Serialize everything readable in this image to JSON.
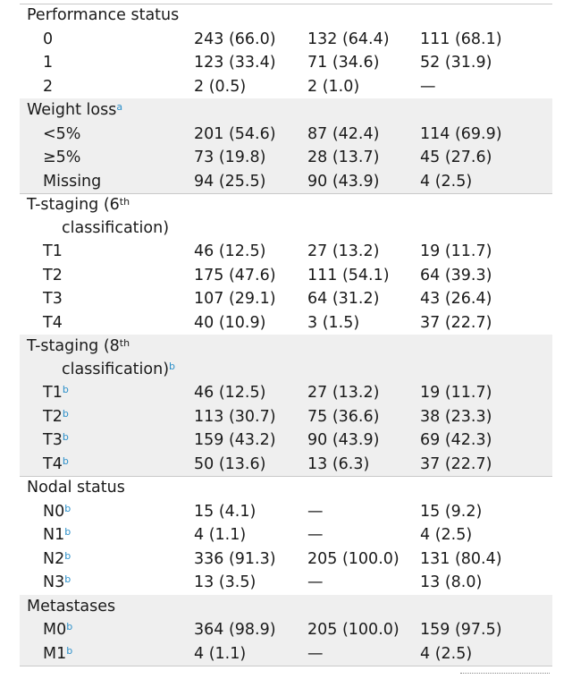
{
  "rows": [
    {
      "label": "Performance status",
      "type": "header",
      "shade": false
    },
    {
      "label": "0",
      "v1": "243 (66.0)",
      "v2": "132 (64.4)",
      "v3": "111 (68.1)"
    },
    {
      "label": "1",
      "v1": "123 (33.4)",
      "v2": "71 (34.6)",
      "v3": "52 (31.9)"
    },
    {
      "label": "2",
      "v1": "2 (0.5)",
      "v2": "2 (1.0)",
      "v3": "—"
    },
    {
      "label": "Weight loss",
      "sup": "a",
      "type": "header",
      "shade": true
    },
    {
      "label": "<5%",
      "v1": "201 (54.6)",
      "v2": "87 (42.4)",
      "v3": "114 (69.9)"
    },
    {
      "label": "≥5%",
      "v1": "73 (19.8)",
      "v2": "28 (13.7)",
      "v3": "45 (27.6)"
    },
    {
      "label": "Missing",
      "v1": "94 (25.5)",
      "v2": "90 (43.9)",
      "v3": "4 (2.5)"
    },
    {
      "label": "T-staging (6",
      "sup": "th",
      "cont": "classification)",
      "type": "header2",
      "shade": false
    },
    {
      "label": "T1",
      "v1": "46 (12.5)",
      "v2": "27 (13.2)",
      "v3": "19 (11.7)"
    },
    {
      "label": "T2",
      "v1": "175 (47.6)",
      "v2": "111 (54.1)",
      "v3": "64 (39.3)"
    },
    {
      "label": "T3",
      "v1": "107 (29.1)",
      "v2": "64 (31.2)",
      "v3": "43 (26.4)"
    },
    {
      "label": "T4",
      "v1": "40 (10.9)",
      "v2": "3 (1.5)",
      "v3": "37 (22.7)"
    },
    {
      "label": "T-staging (8",
      "sup": "th",
      "cont": "classification)",
      "contSup": "b",
      "type": "header2",
      "shade": true
    },
    {
      "label": "T1",
      "sup": "b",
      "v1": "46 (12.5)",
      "v2": "27 (13.2)",
      "v3": "19 (11.7)"
    },
    {
      "label": "T2",
      "sup": "b",
      "v1": "113 (30.7)",
      "v2": "75 (36.6)",
      "v3": "38 (23.3)"
    },
    {
      "label": "T3",
      "sup": "b",
      "v1": "159 (43.2)",
      "v2": "90 (43.9)",
      "v3": "69 (42.3)"
    },
    {
      "label": "T4",
      "sup": "b",
      "v1": "50 (13.6)",
      "v2": "13 (6.3)",
      "v3": "37 (22.7)"
    },
    {
      "label": "Nodal status",
      "type": "header",
      "shade": false
    },
    {
      "label": "N0",
      "sup": "b",
      "v1": "15 (4.1)",
      "v2": "—",
      "v3": "15 (9.2)"
    },
    {
      "label": "N1",
      "sup": "b",
      "v1": "4 (1.1)",
      "v2": "—",
      "v3": "4 (2.5)"
    },
    {
      "label": "N2",
      "sup": "b",
      "v1": "336 (91.3)",
      "v2": "205 (100.0)",
      "v3": "131 (80.4)"
    },
    {
      "label": "N3",
      "sup": "b",
      "v1": "13 (3.5)",
      "v2": "—",
      "v3": "13 (8.0)"
    },
    {
      "label": "Metastases",
      "type": "header",
      "shade": true
    },
    {
      "label": "M0",
      "sup": "b",
      "v1": "364 (98.9)",
      "v2": "205 (100.0)",
      "v3": "159 (97.5)"
    },
    {
      "label": "M1",
      "sup": "b",
      "v1": "4 (1.1)",
      "v2": "—",
      "v3": "4 (2.5)"
    }
  ]
}
